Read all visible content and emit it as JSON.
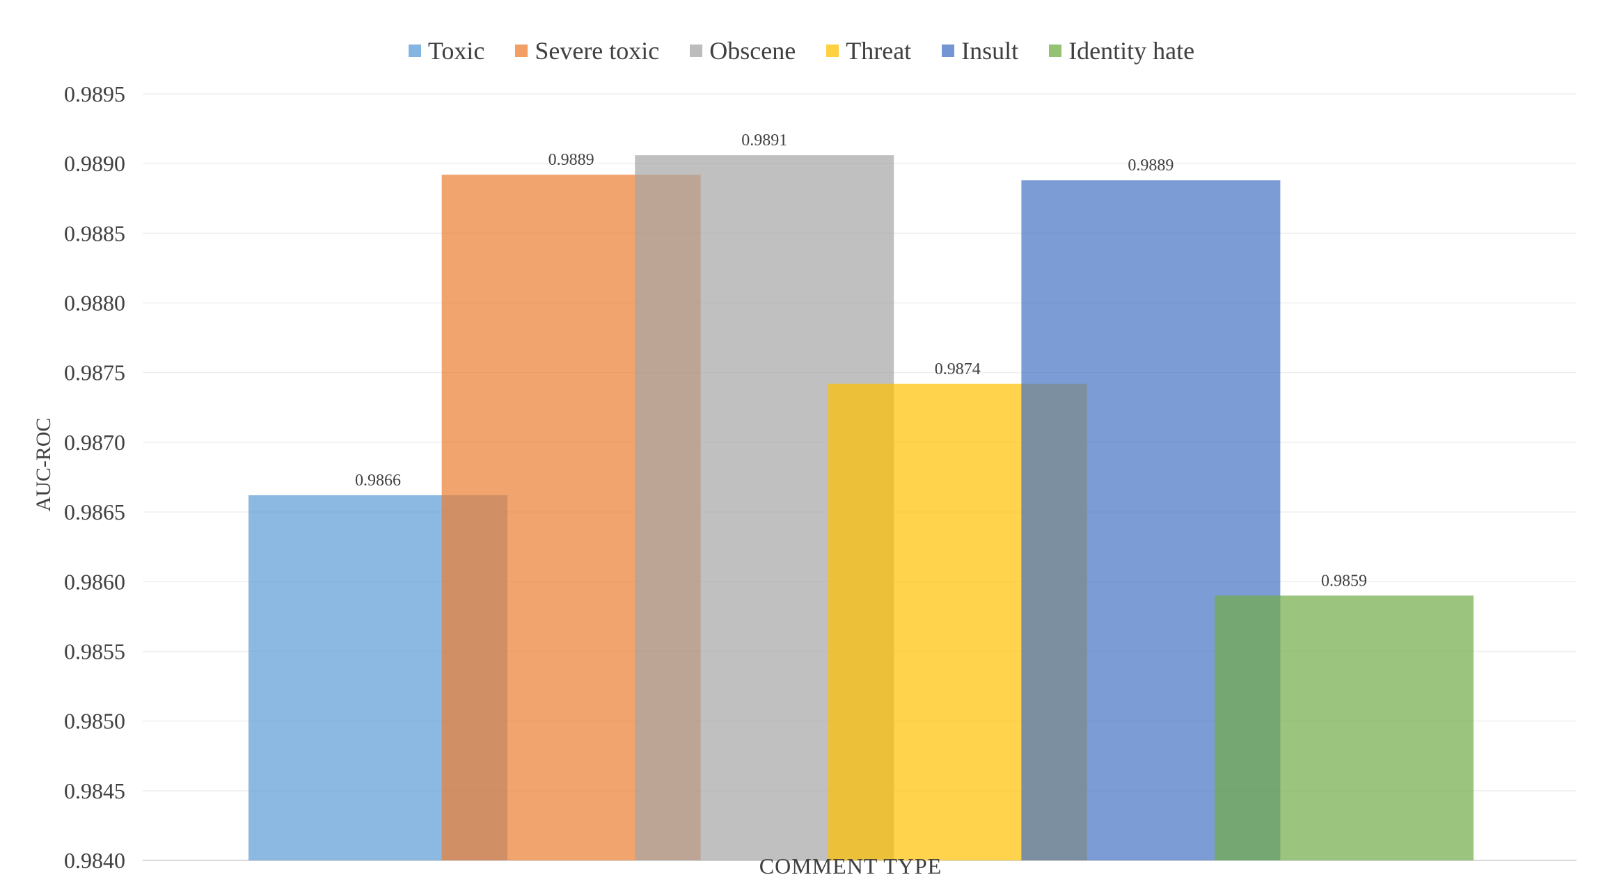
{
  "chart_data": {
    "type": "bar",
    "title": "",
    "xlabel": "COMMENT TYPE",
    "ylabel": "AUC-ROC",
    "ylim": [
      0.984,
      0.9895
    ],
    "yticks": [
      "0.9840",
      "0.9845",
      "0.9850",
      "0.9855",
      "0.9860",
      "0.9865",
      "0.9870",
      "0.9875",
      "0.9880",
      "0.9885",
      "0.9890",
      "0.9895"
    ],
    "grid": true,
    "legend_position": "top",
    "series": [
      {
        "name": "Toxic",
        "value": 0.98662,
        "label": "0.9866",
        "color": "#5B9BD5"
      },
      {
        "name": "Severe toxic",
        "value": 0.98892,
        "label": "0.9889",
        "color": "#ED7D31"
      },
      {
        "name": "Obscene",
        "value": 0.98906,
        "label": "0.9891",
        "color": "#A5A5A5"
      },
      {
        "name": "Threat",
        "value": 0.98742,
        "label": "0.9874",
        "color": "#FFC000"
      },
      {
        "name": "Insult",
        "value": 0.98888,
        "label": "0.9889",
        "color": "#4472C4"
      },
      {
        "name": "Identity hate",
        "value": 0.9859,
        "label": "0.9859",
        "color": "#70AD47"
      }
    ]
  }
}
